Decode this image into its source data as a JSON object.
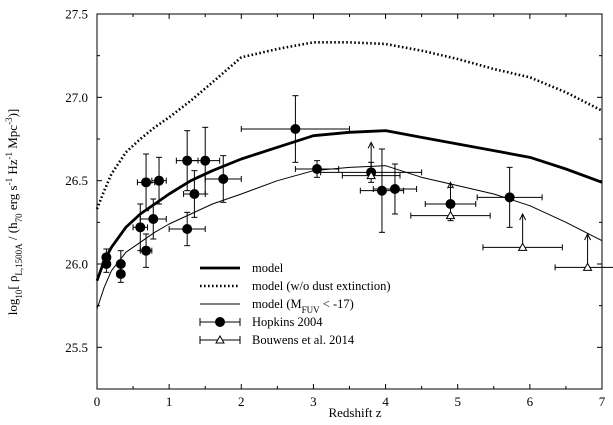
{
  "chart_data": {
    "type": "line",
    "xlabel": "Redshift z",
    "ylabel_parts": {
      "log": "log",
      "log_sub": "10",
      "open": "[ ρ",
      "rho_sub": "L,1500A",
      "mid": " / (h",
      "h_sub": "70",
      "unit": " erg s",
      "exp1": "-1",
      "hz": " Hz",
      "exp2": "-1",
      "mpc": " Mpc",
      "exp3": "-3",
      "close": ")]"
    },
    "xlim": [
      0,
      7
    ],
    "ylim": [
      25.25,
      27.5
    ],
    "xticks": [
      0,
      1,
      2,
      3,
      4,
      5,
      6,
      7
    ],
    "yticks": [
      25.5,
      26.0,
      26.5,
      27.0,
      27.5
    ],
    "ytick_labels": [
      "25.5",
      "26.0",
      "26.5",
      "27.0",
      "27.5"
    ],
    "grid": false,
    "legend": {
      "placement": "bottom-center",
      "entries": [
        {
          "key": "model",
          "label": "model"
        },
        {
          "key": "model_nodust",
          "label": "model (w/o dust extinction)"
        },
        {
          "key": "model_mfuv",
          "label_main": "model (M",
          "label_sub": "FUV",
          "label_tail": " < -17)"
        },
        {
          "key": "hopkins",
          "label": "Hopkins 2004"
        },
        {
          "key": "bouwens",
          "label": "Bouwens et al. 2014"
        }
      ]
    },
    "series": [
      {
        "key": "model",
        "style": "thick",
        "x": [
          0,
          0.1,
          0.2,
          0.4,
          0.6,
          0.8,
          1.0,
          1.3,
          1.6,
          2.0,
          2.5,
          3.0,
          3.5,
          4.0,
          4.5,
          5.0,
          5.5,
          6.0,
          6.5,
          7.0
        ],
        "y": [
          25.9,
          26.02,
          26.1,
          26.22,
          26.3,
          26.36,
          26.42,
          26.5,
          26.56,
          26.63,
          26.7,
          26.77,
          26.79,
          26.8,
          26.76,
          26.72,
          26.68,
          26.64,
          26.57,
          26.49
        ]
      },
      {
        "key": "model_nodust",
        "style": "dotted",
        "x": [
          0,
          0.1,
          0.2,
          0.4,
          0.6,
          0.8,
          1.0,
          1.3,
          1.6,
          2.0,
          2.5,
          3.0,
          3.5,
          4.0,
          4.5,
          5.0,
          5.5,
          6.0,
          6.5,
          7.0
        ],
        "y": [
          26.33,
          26.44,
          26.54,
          26.67,
          26.75,
          26.82,
          26.88,
          26.98,
          27.09,
          27.24,
          27.29,
          27.33,
          27.33,
          27.32,
          27.28,
          27.23,
          27.17,
          27.12,
          27.03,
          26.92
        ]
      },
      {
        "key": "model_mfuv",
        "style": "thin",
        "x": [
          0,
          0.1,
          0.2,
          0.4,
          0.6,
          0.8,
          1.0,
          1.3,
          1.6,
          2.0,
          2.5,
          3.0,
          3.5,
          4.0,
          4.5,
          5.0,
          5.5,
          6.0,
          6.5,
          7.0
        ],
        "y": [
          25.73,
          25.86,
          25.96,
          26.07,
          26.13,
          26.19,
          26.24,
          26.3,
          26.36,
          26.42,
          26.5,
          26.56,
          26.58,
          26.59,
          26.52,
          26.47,
          26.42,
          26.35,
          26.25,
          26.14
        ]
      }
    ],
    "hopkins": [
      {
        "x": 0.13,
        "y": 26.04,
        "xerr": [
          0.03,
          0.03
        ],
        "yerr": [
          0.05,
          0.05
        ]
      },
      {
        "x": 0.13,
        "y": 26.0,
        "xerr": [
          0.05,
          0.05
        ],
        "yerr": [
          0.05,
          0.05
        ]
      },
      {
        "x": 0.33,
        "y": 26.0,
        "xerr": [
          0.05,
          0.05
        ],
        "yerr": [
          0.08,
          0.08
        ]
      },
      {
        "x": 0.33,
        "y": 25.94,
        "xerr": [
          0.05,
          0.05
        ],
        "yerr": [
          0.05,
          0.05
        ]
      },
      {
        "x": 0.6,
        "y": 26.22,
        "xerr": [
          0.1,
          0.1
        ],
        "yerr": [
          0.14,
          0.14
        ]
      },
      {
        "x": 0.68,
        "y": 26.08,
        "xerr": [
          0.08,
          0.08
        ],
        "yerr": [
          0.1,
          0.1
        ]
      },
      {
        "x": 0.68,
        "y": 26.49,
        "xerr": [
          0.12,
          0.12
        ],
        "yerr": [
          0.17,
          0.17
        ]
      },
      {
        "x": 0.78,
        "y": 26.27,
        "xerr": [
          0.18,
          0.18
        ],
        "yerr": [
          0.12,
          0.12
        ]
      },
      {
        "x": 0.86,
        "y": 26.5,
        "xerr": [
          0.1,
          0.1
        ],
        "yerr": [
          0.14,
          0.14
        ]
      },
      {
        "x": 1.25,
        "y": 26.62,
        "xerr": [
          0.15,
          0.15
        ],
        "yerr": [
          0.18,
          0.18
        ]
      },
      {
        "x": 1.25,
        "y": 26.21,
        "xerr": [
          0.25,
          0.25
        ],
        "yerr": [
          0.1,
          0.1
        ]
      },
      {
        "x": 1.35,
        "y": 26.42,
        "xerr": [
          0.15,
          0.15
        ],
        "yerr": [
          0.14,
          0.14
        ]
      },
      {
        "x": 1.5,
        "y": 26.62,
        "xerr": [
          0.2,
          0.2
        ],
        "yerr": [
          0.2,
          0.2
        ]
      },
      {
        "x": 1.75,
        "y": 26.51,
        "xerr": [
          0.25,
          0.25
        ],
        "yerr": [
          0.14,
          0.14
        ]
      },
      {
        "x": 2.75,
        "y": 26.81,
        "xerr": [
          0.75,
          0.75
        ],
        "yerr": [
          0.2,
          0.2
        ]
      },
      {
        "x": 3.05,
        "y": 26.57,
        "xerr": [
          0.3,
          0.3
        ],
        "yerr": [
          0.05,
          0.05
        ]
      },
      {
        "x": 3.8,
        "y": 26.55,
        "xerr": [
          0.7,
          0.7
        ],
        "yerr": [
          0.06,
          0.06
        ]
      },
      {
        "x": 3.95,
        "y": 26.44,
        "xerr": [
          0.3,
          0.3
        ],
        "yerr": [
          0.25,
          0.25
        ]
      },
      {
        "x": 4.13,
        "y": 26.45,
        "xerr": [
          0.3,
          0.3
        ],
        "yerr": [
          0.15,
          0.15
        ]
      },
      {
        "x": 4.9,
        "y": 26.36,
        "xerr": [
          0.35,
          0.35
        ],
        "yerr": [
          0.1,
          0.1
        ]
      },
      {
        "x": 5.72,
        "y": 26.4,
        "xerr": [
          0.45,
          0.45
        ],
        "yerr": [
          0.18,
          0.18
        ]
      }
    ],
    "bouwens": [
      {
        "x": 3.8,
        "y": 26.53,
        "xerr": [
          0.4,
          0.4
        ],
        "arrow": 0.2
      },
      {
        "x": 4.9,
        "y": 26.29,
        "xerr": [
          0.55,
          0.55
        ],
        "arrow": 0.2
      },
      {
        "x": 5.9,
        "y": 26.1,
        "xerr": [
          0.55,
          0.55
        ],
        "arrow": 0.2
      },
      {
        "x": 6.8,
        "y": 25.98,
        "xerr": [
          0.45,
          0.45
        ],
        "arrow": 0.2
      }
    ]
  }
}
